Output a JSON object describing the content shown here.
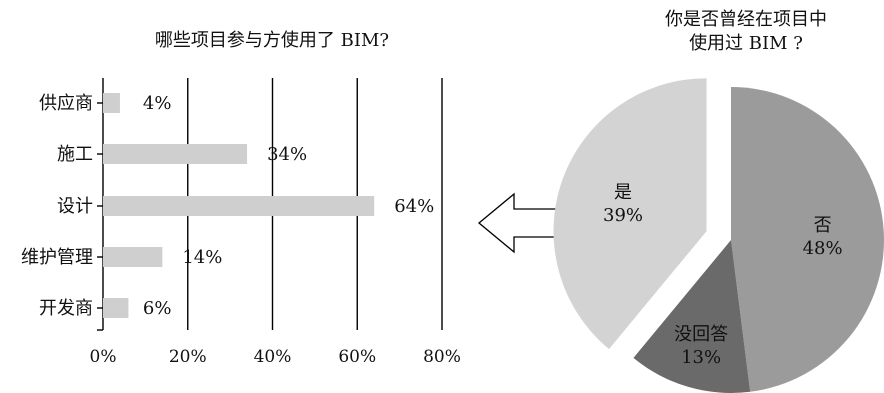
{
  "chart_data": [
    {
      "type": "bar",
      "orientation": "horizontal",
      "title": "哪些项目参与方使用了 BIM?",
      "categories": [
        "供应商",
        "施工",
        "设计",
        "维护管理",
        "开发商"
      ],
      "values": [
        4,
        34,
        64,
        14,
        6
      ],
      "value_labels": [
        "4%",
        "34%",
        "64%",
        "14%",
        "6%"
      ],
      "xlim": [
        0,
        80
      ],
      "xticks": [
        "0%",
        "20%",
        "40%",
        "60%",
        "80%"
      ],
      "grid": true,
      "colors": {
        "bar": "#cfcfcf",
        "grid": "#000000"
      }
    },
    {
      "type": "pie",
      "title_lines": [
        "你是否曾经在项目中",
        "使用过 BIM ?"
      ],
      "slices": [
        {
          "name": "否",
          "value": 48,
          "label": "48%",
          "color": "#9b9b9b"
        },
        {
          "name": "没回答",
          "value": 13,
          "label": "13%",
          "color": "#6a6a6a"
        },
        {
          "name": "是",
          "value": 39,
          "label": "39%",
          "color": "#d3d3d3",
          "exploded": true
        }
      ]
    }
  ],
  "connector": {
    "icon": "left-arrow-icon"
  }
}
